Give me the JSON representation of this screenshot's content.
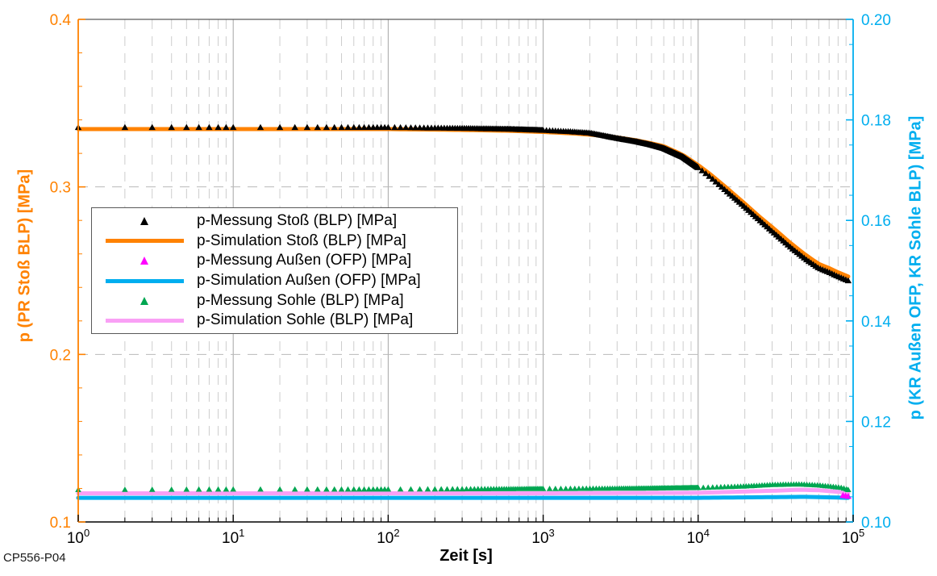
{
  "footnote": "CP556-P04",
  "axes": {
    "x": {
      "title": "Zeit [s]",
      "base": "10",
      "tick_exponents": [
        "0",
        "1",
        "2",
        "3",
        "4",
        "5"
      ]
    },
    "left": {
      "title": "p (PR Stoß BLP) [MPa]",
      "color": "#FF8200",
      "tick_labels": [
        "0.4",
        "0.3",
        "0.2",
        "0.1"
      ],
      "tick_values": [
        0.4,
        0.3,
        0.2,
        0.1
      ],
      "range": [
        0.1,
        0.4
      ],
      "minor_step": 0.02
    },
    "right": {
      "title": "p (KR Außen OFP, KR Sohle BLP) [MPa]",
      "color": "#00AEEF",
      "tick_labels": [
        "0.20",
        "0.18",
        "0.16",
        "0.14",
        "0.12",
        "0.10"
      ],
      "tick_values": [
        0.2,
        0.18,
        0.16,
        0.14,
        0.12,
        0.1
      ],
      "range": [
        0.1,
        0.2
      ],
      "minor_step": 0.005
    }
  },
  "legend": {
    "items": [
      {
        "label": "p-Messung Stoß (BLP) [MPa]",
        "swatch": "marker",
        "color": "#000000"
      },
      {
        "label": "p-Simulation Stoß (BLP) [MPa]",
        "swatch": "line",
        "color": "#FF8200"
      },
      {
        "label": "p-Messung Außen (OFP) [MPa]",
        "swatch": "marker",
        "color": "#FF00FF"
      },
      {
        "label": "p-Simulation Außen (OFP) [MPa]",
        "swatch": "line",
        "color": "#00AEEF"
      },
      {
        "label": "p-Messung Sohle (BLP) [MPa]",
        "swatch": "marker",
        "color": "#00A651"
      },
      {
        "label": "p-Simulation Sohle (BLP) [MPa]",
        "swatch": "line",
        "color": "#F9A0F5"
      }
    ]
  },
  "chart_data": {
    "type": "line",
    "xlabel": "Zeit [s]",
    "x_scale": "log",
    "x_range": [
      1,
      100000
    ],
    "left_axis_range": [
      0.1,
      0.4
    ],
    "right_axis_range": [
      0.1,
      0.2
    ],
    "grid": {
      "vertical_major_decades": [
        1,
        2,
        3,
        4
      ],
      "horizontal_dashed_left_values": [
        0.3,
        0.2
      ]
    },
    "series": [
      {
        "name": "p-Messung Stoß (BLP) [MPa]",
        "axis": "left",
        "kind": "markers",
        "marker": "triangle-up",
        "color": "#000000",
        "marker_halfwidth": 4.2,
        "marker_sampling": {
          "decade_steps": [
            1,
            5,
            10,
            50
          ],
          "tail": {
            "min_step": 600,
            "frac": 0.035
          }
        },
        "points": [
          [
            1,
            0.3355
          ],
          [
            10,
            0.3355
          ],
          [
            100,
            0.3355
          ],
          [
            300,
            0.335
          ],
          [
            600,
            0.3345
          ],
          [
            1000,
            0.3338
          ],
          [
            1500,
            0.333
          ],
          [
            2000,
            0.3322
          ],
          [
            3000,
            0.329
          ],
          [
            4000,
            0.327
          ],
          [
            5000,
            0.325
          ],
          [
            6000,
            0.323
          ],
          [
            8000,
            0.3178
          ],
          [
            10000,
            0.3115
          ],
          [
            12000,
            0.3058
          ],
          [
            15000,
            0.298
          ],
          [
            20000,
            0.288
          ],
          [
            25000,
            0.28
          ],
          [
            30000,
            0.2735
          ],
          [
            40000,
            0.2635
          ],
          [
            50000,
            0.2565
          ],
          [
            60000,
            0.2515
          ],
          [
            70000,
            0.249
          ],
          [
            80000,
            0.2465
          ],
          [
            93000,
            0.244
          ]
        ]
      },
      {
        "name": "p-Simulation Stoß (BLP) [MPa]",
        "axis": "left",
        "kind": "line",
        "color": "#FF8200",
        "width": 5,
        "points": [
          [
            1,
            0.3345
          ],
          [
            10,
            0.3345
          ],
          [
            100,
            0.3345
          ],
          [
            300,
            0.334
          ],
          [
            600,
            0.3335
          ],
          [
            1000,
            0.3328
          ],
          [
            1500,
            0.332
          ],
          [
            2000,
            0.3312
          ],
          [
            3000,
            0.3295
          ],
          [
            4000,
            0.3278
          ],
          [
            5000,
            0.326
          ],
          [
            6000,
            0.3243
          ],
          [
            8000,
            0.319
          ],
          [
            10000,
            0.313
          ],
          [
            12000,
            0.3075
          ],
          [
            15000,
            0.3
          ],
          [
            20000,
            0.29
          ],
          [
            25000,
            0.282
          ],
          [
            30000,
            0.276
          ],
          [
            40000,
            0.266
          ],
          [
            50000,
            0.259
          ],
          [
            60000,
            0.254
          ],
          [
            70000,
            0.2515
          ],
          [
            80000,
            0.249
          ],
          [
            93000,
            0.2465
          ]
        ]
      },
      {
        "name": "p-Messung Außen (OFP) [MPa]",
        "axis": "right",
        "kind": "markers",
        "marker": "triangle-up",
        "color": "#FF00FF",
        "marker_halfwidth": 4.2,
        "marker_sampling": {
          "times": [
            86000,
            89500,
            93000
          ]
        },
        "points": [
          [
            85000,
            0.1053
          ],
          [
            93000,
            0.1051
          ]
        ]
      },
      {
        "name": "p-Simulation Außen (OFP) [MPa]",
        "axis": "right",
        "kind": "line",
        "color": "#00AEEF",
        "width": 5,
        "points": [
          [
            1,
            0.1048
          ],
          [
            100,
            0.1048
          ],
          [
            10000,
            0.1048
          ],
          [
            50000,
            0.105
          ],
          [
            93000,
            0.1048
          ]
        ]
      },
      {
        "name": "p-Messung Sohle (BLP) [MPa]",
        "axis": "right",
        "kind": "markers",
        "marker": "triangle-up",
        "color": "#00A651",
        "marker_halfwidth": 3.8,
        "marker_sampling": {
          "decade_steps": [
            1,
            5,
            20,
            100
          ],
          "tail": {
            "min_step": 800,
            "frac": 0.04
          }
        },
        "points": [
          [
            1,
            0.1064
          ],
          [
            10,
            0.1065
          ],
          [
            100,
            0.1065
          ],
          [
            1000,
            0.1066
          ],
          [
            5000,
            0.1067
          ],
          [
            10000,
            0.1068
          ],
          [
            20000,
            0.1071
          ],
          [
            30000,
            0.1074
          ],
          [
            45000,
            0.1075
          ],
          [
            60000,
            0.1073
          ],
          [
            75000,
            0.107
          ],
          [
            85000,
            0.1068
          ],
          [
            93000,
            0.1064
          ]
        ]
      },
      {
        "name": "p-Simulation Sohle (BLP) [MPa]",
        "axis": "right",
        "kind": "line",
        "color": "#F9A0F5",
        "width": 5,
        "points": [
          [
            1,
            0.1057
          ],
          [
            1000,
            0.1057
          ],
          [
            10000,
            0.1058
          ],
          [
            30000,
            0.1062
          ],
          [
            45000,
            0.1064
          ],
          [
            60000,
            0.1063
          ],
          [
            80000,
            0.106
          ],
          [
            93000,
            0.1057
          ]
        ]
      }
    ]
  }
}
